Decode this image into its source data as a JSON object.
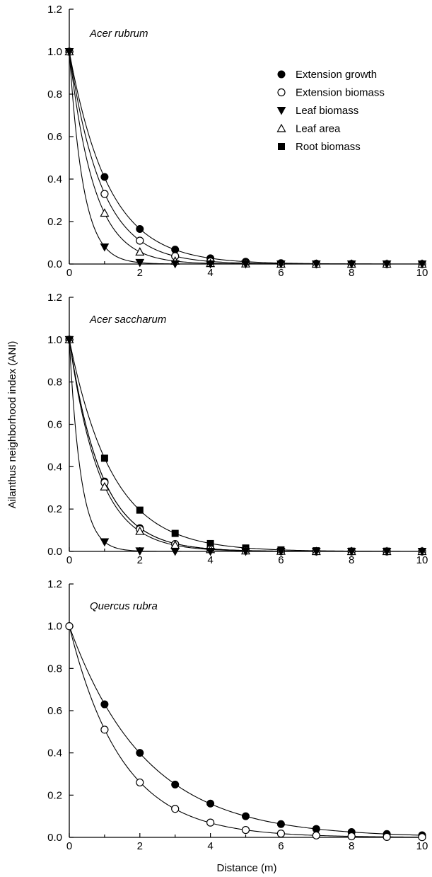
{
  "figure": {
    "ylabel": "Ailanthus neighborhood index (ANI)",
    "xlabel": "Distance (m)"
  },
  "chart_data": [
    {
      "type": "scatter",
      "title": "Acer rubrum",
      "xlim": [
        0,
        10
      ],
      "ylim": [
        0,
        1.2
      ],
      "x_ticks": [
        "0",
        "2",
        "4",
        "6",
        "8",
        "10"
      ],
      "y_ticks": [
        "0.0",
        "0.2",
        "0.4",
        "0.6",
        "0.8",
        "1.0",
        "1.2"
      ],
      "legend_position": "top-right",
      "fitted_curves": true,
      "series": [
        {
          "name": "Extension growth",
          "marker": "filled-circle",
          "k": 0.9,
          "x": [
            0,
            1,
            2,
            3,
            4,
            5,
            6,
            7,
            8,
            9,
            10
          ],
          "y": [
            1.0,
            0.41,
            0.165,
            0.068,
            0.027,
            0.011,
            0.004,
            0.002,
            0.001,
            0.0,
            0.0
          ]
        },
        {
          "name": "Extension biomass",
          "marker": "open-circle",
          "k": 1.1,
          "x": [
            0,
            1,
            2,
            3,
            4,
            5,
            6,
            7,
            8,
            9,
            10
          ],
          "y": [
            1.0,
            0.33,
            0.11,
            0.037,
            0.012,
            0.004,
            0.001,
            0.0,
            0.0,
            0.0,
            0.0
          ]
        },
        {
          "name": "Leaf biomass",
          "marker": "filled-triangle-down",
          "k": 2.5,
          "x": [
            0,
            1,
            2,
            3,
            4,
            5,
            6,
            7,
            8,
            9,
            10
          ],
          "y": [
            1.0,
            0.08,
            0.007,
            0.001,
            0.0,
            0.0,
            0.0,
            0.0,
            0.0,
            0.0,
            0.0
          ]
        },
        {
          "name": "Leaf area",
          "marker": "open-triangle-up",
          "k": 1.43,
          "x": [
            0,
            1,
            2,
            3,
            4,
            5,
            6,
            7,
            8,
            9,
            10
          ],
          "y": [
            1.0,
            0.24,
            0.057,
            0.014,
            0.003,
            0.001,
            0.0,
            0.0,
            0.0,
            0.0,
            0.0
          ]
        },
        {
          "name": "Root biomass",
          "marker": "filled-square",
          "k": null,
          "x": [],
          "y": []
        }
      ]
    },
    {
      "type": "scatter",
      "title": "Acer saccharum",
      "xlim": [
        0,
        10
      ],
      "ylim": [
        0,
        1.2
      ],
      "x_ticks": [
        "0",
        "2",
        "4",
        "6",
        "8",
        "10"
      ],
      "y_ticks": [
        "0.0",
        "0.2",
        "0.4",
        "0.6",
        "0.8",
        "1.0",
        "1.2"
      ],
      "fitted_curves": true,
      "series": [
        {
          "marker": "filled-circle",
          "k": 1.1,
          "x": [
            0,
            1,
            2,
            3,
            4,
            5,
            6,
            7,
            8,
            9,
            10
          ],
          "y": [
            1.0,
            0.33,
            0.11,
            0.035,
            0.012,
            0.004,
            0.001,
            0.0,
            0.0,
            0.0,
            0.0
          ]
        },
        {
          "marker": "open-circle",
          "k": 1.1,
          "x": [
            0,
            1,
            2,
            3,
            4,
            5,
            6,
            7,
            8,
            9,
            10
          ],
          "y": [
            1.0,
            0.325,
            0.105,
            0.034,
            0.011,
            0.004,
            0.001,
            0.0,
            0.0,
            0.0,
            0.0
          ]
        },
        {
          "marker": "filled-triangle-down",
          "k": 3.1,
          "x": [
            0,
            1,
            2,
            3,
            4,
            5,
            6,
            7,
            8,
            9,
            10
          ],
          "y": [
            1.0,
            0.045,
            0.002,
            0.0,
            0.0,
            0.0,
            0.0,
            0.0,
            0.0,
            0.0,
            0.0
          ]
        },
        {
          "marker": "open-triangle-up",
          "k": 1.18,
          "x": [
            0,
            1,
            2,
            3,
            4,
            5,
            6,
            7,
            8,
            9,
            10
          ],
          "y": [
            1.0,
            0.305,
            0.095,
            0.03,
            0.009,
            0.003,
            0.001,
            0.0,
            0.0,
            0.0,
            0.0
          ]
        },
        {
          "marker": "filled-square",
          "k": 0.82,
          "x": [
            0,
            1,
            2,
            3,
            4,
            5,
            6,
            7,
            8,
            9,
            10
          ],
          "y": [
            1.0,
            0.44,
            0.195,
            0.085,
            0.037,
            0.016,
            0.007,
            0.003,
            0.001,
            0.001,
            0.0
          ]
        }
      ]
    },
    {
      "type": "scatter",
      "title": "Quercus rubra",
      "xlim": [
        0,
        10
      ],
      "ylim": [
        0,
        1.2
      ],
      "x_ticks": [
        "0",
        "2",
        "4",
        "6",
        "8",
        "10"
      ],
      "y_ticks": [
        "0.0",
        "0.2",
        "0.4",
        "0.6",
        "0.8",
        "1.0",
        "1.2"
      ],
      "fitted_curves": true,
      "series": [
        {
          "marker": "filled-circle",
          "k": 0.46,
          "x": [
            0,
            1,
            2,
            3,
            4,
            5,
            6,
            7,
            8,
            9,
            10
          ],
          "y": [
            1.0,
            0.63,
            0.4,
            0.25,
            0.16,
            0.1,
            0.063,
            0.04,
            0.025,
            0.016,
            0.01
          ]
        },
        {
          "marker": "open-circle",
          "k": 0.67,
          "x": [
            0,
            1,
            2,
            3,
            4,
            5,
            6,
            7,
            8,
            9,
            10
          ],
          "y": [
            1.0,
            0.51,
            0.26,
            0.135,
            0.07,
            0.035,
            0.018,
            0.009,
            0.005,
            0.002,
            0.001
          ]
        }
      ]
    }
  ]
}
